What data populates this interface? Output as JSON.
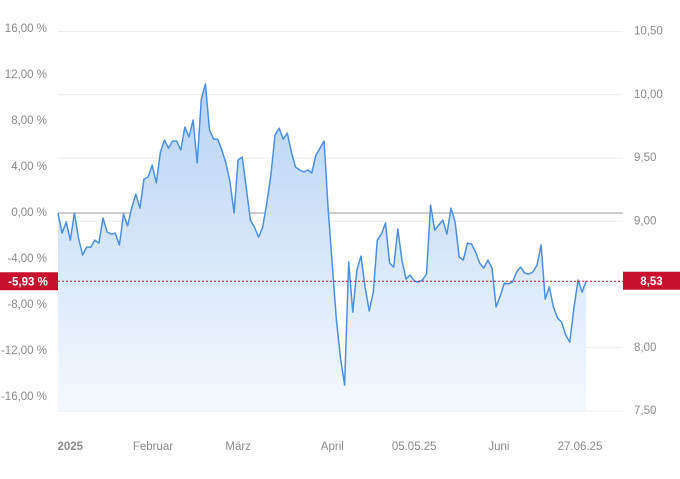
{
  "chart_data": {
    "type": "line",
    "series": [
      {
        "color": "#4a90e2",
        "values": [
          0,
          -1.74,
          -0.78,
          -2.35,
          0,
          -2.17,
          -3.65,
          -2.96,
          -2.96,
          -2.35,
          -2.61,
          -0.43,
          -1.65,
          -1.83,
          -1.74,
          -2.78,
          -0.09,
          -1.13,
          0.43,
          1.65,
          0.43,
          2.96,
          3.13,
          4.17,
          2.61,
          5.3,
          6.35,
          5.65,
          6.26,
          6.26,
          5.48,
          7.48,
          6.61,
          8.09,
          4.35,
          9.91,
          11.22,
          7.22,
          6.43,
          6.43,
          5.48,
          4.35,
          2.7,
          0,
          4.61,
          4.87,
          2.17,
          -0.61,
          -1.22,
          -2.09,
          -1.22,
          0.87,
          3.3,
          6.78,
          7.39,
          6.43,
          6.96,
          5.3,
          4,
          3.74,
          3.57,
          3.74,
          3.48,
          5.04,
          5.65,
          6.26,
          0.26,
          -4.52,
          -9.3,
          -12.61,
          -14.96,
          -4.26,
          -8.61,
          -4.96,
          -3.74,
          -6.43,
          -8.52,
          -6.87,
          -2.35,
          -1.83,
          -0.87,
          -4.35,
          -4.7,
          -1.39,
          -4.09,
          -5.74,
          -5.39,
          -5.91,
          -6,
          -5.83,
          -5.3,
          0.7,
          -1.48,
          -1.04,
          -0.61,
          -1.83,
          0.43,
          -0.78,
          -3.83,
          -4.09,
          -2.61,
          -2.7,
          -3.39,
          -4.35,
          -4.78,
          -4.09,
          -4.78,
          -8.17,
          -7.22,
          -6.09,
          -6.17,
          -6,
          -5.13,
          -4.7,
          -5.22,
          -5.3,
          -5.13,
          -4.52,
          -2.78,
          -7.48,
          -6.43,
          -8.17,
          -9.13,
          -9.48,
          -10.61,
          -11.22,
          -8.26,
          -5.83,
          -6.87,
          -5.93
        ]
      }
    ],
    "xlim": [
      0,
      138
    ],
    "xticks": [
      {
        "value": 3,
        "label": "2025"
      },
      {
        "value": 23.2,
        "label": "Februar"
      },
      {
        "value": 44,
        "label": "März"
      },
      {
        "value": 67,
        "label": "April"
      },
      {
        "value": 87,
        "label": "05.05.25"
      },
      {
        "value": 107.7,
        "label": "Juni"
      },
      {
        "value": 127.5,
        "label": "27.06.25"
      }
    ],
    "ylim": [
      -18.43,
      17.22
    ],
    "yticks": [
      {
        "value": 16,
        "label": "16,00 %"
      },
      {
        "value": 12,
        "label": "12,00 %"
      },
      {
        "value": 8,
        "label": "8,00 %"
      },
      {
        "value": 4,
        "label": "4,00 %"
      },
      {
        "value": 0,
        "label": "0,00 %"
      },
      {
        "value": -4,
        "label": "-4,00 %"
      },
      {
        "value": -8,
        "label": "-8,00 %"
      },
      {
        "value": -12,
        "label": "-12,00 %"
      },
      {
        "value": -16,
        "label": "-16,00 %"
      }
    ],
    "y2lim": [
      7.39,
      10.63
    ],
    "y2ticks": [
      {
        "value": 10.5,
        "label": "10,50"
      },
      {
        "value": 10,
        "label": "10,00"
      },
      {
        "value": 9.5,
        "label": "9,50"
      },
      {
        "value": 9,
        "label": "9,00"
      },
      {
        "value": 8,
        "label": "8,00"
      },
      {
        "value": 7.5,
        "label": "7,50"
      }
    ],
    "current": {
      "value": -5.93,
      "label": "-5,93 %"
    },
    "current_price": {
      "value": 8.53,
      "label": "8,53"
    },
    "marker_color": "#c8102e"
  }
}
